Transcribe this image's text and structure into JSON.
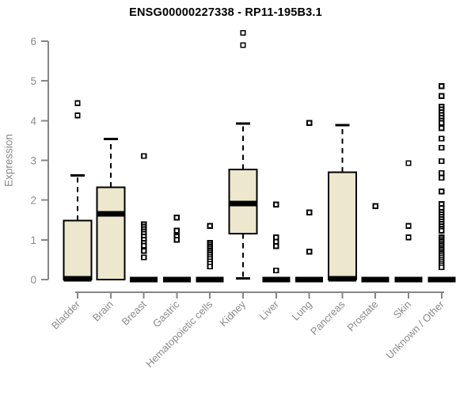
{
  "page": {
    "background": "#ffffff"
  },
  "chart_data": {
    "type": "boxplot",
    "title": "ENSG00000227338 - RP11-195B3.1",
    "xlabel": "",
    "ylabel": "Expression",
    "ylim": [
      0,
      6
    ],
    "yticks": [
      0,
      1,
      2,
      3,
      4,
      5,
      6
    ],
    "grid": false,
    "legend": "none",
    "categories": [
      "Bladder",
      "Brain",
      "Breast",
      "Gastric",
      "Hematopoietic cells",
      "Kidney",
      "Liver",
      "Lung",
      "Pancreas",
      "Prostate",
      "Skin",
      "Unknown / Other"
    ],
    "series": [
      {
        "category": "Bladder",
        "q1": 0,
        "median": 0.02,
        "q3": 1.49,
        "whisker_low": 0,
        "whisker_high": 2.62,
        "outliers": [
          4.44,
          4.13
        ]
      },
      {
        "category": "Brain",
        "q1": 0,
        "median": 1.65,
        "q3": 2.32,
        "whisker_low": 0,
        "whisker_high": 3.54,
        "outliers": []
      },
      {
        "category": "Breast",
        "q1": 0,
        "median": 0,
        "q3": 0,
        "whisker_low": 0,
        "whisker_high": 0,
        "outliers": [
          3.11,
          1.39,
          1.33,
          1.27,
          1.21,
          1.15,
          1.08,
          1.0,
          0.92,
          0.85,
          0.72,
          0.56
        ]
      },
      {
        "category": "Gastric",
        "q1": 0,
        "median": 0,
        "q3": 0,
        "whisker_low": 0,
        "whisker_high": 0,
        "outliers": [
          1.56,
          1.23,
          1.08,
          1.0
        ]
      },
      {
        "category": "Hematopoietic cells",
        "q1": 0,
        "median": 0,
        "q3": 0,
        "whisker_low": 0,
        "whisker_high": 0,
        "outliers": [
          1.35,
          0.92,
          0.87,
          0.82,
          0.77,
          0.72,
          0.67,
          0.62,
          0.57,
          0.52,
          0.46,
          0.4,
          0.33
        ]
      },
      {
        "category": "Kidney",
        "q1": 1.16,
        "median": 1.91,
        "q3": 2.77,
        "whisker_low": 0.03,
        "whisker_high": 3.93,
        "outliers": [
          6.21,
          5.9
        ]
      },
      {
        "category": "Liver",
        "q1": 0,
        "median": 0,
        "q3": 0,
        "whisker_low": 0,
        "whisker_high": 0,
        "outliers": [
          1.89,
          1.06,
          0.95,
          0.84,
          0.23
        ]
      },
      {
        "category": "Lung",
        "q1": 0,
        "median": 0,
        "q3": 0,
        "whisker_low": 0,
        "whisker_high": 0,
        "outliers": [
          3.94,
          1.69,
          0.7
        ]
      },
      {
        "category": "Pancreas",
        "q1": 0,
        "median": 0.02,
        "q3": 2.7,
        "whisker_low": 0,
        "whisker_high": 3.89,
        "outliers": []
      },
      {
        "category": "Prostate",
        "q1": 0,
        "median": 0,
        "q3": 0,
        "whisker_low": 0,
        "whisker_high": 0,
        "outliers": [
          1.85
        ]
      },
      {
        "category": "Skin",
        "q1": 0,
        "median": 0,
        "q3": 0,
        "whisker_low": 0,
        "whisker_high": 0,
        "outliers": [
          2.93,
          1.35,
          1.06
        ]
      },
      {
        "category": "Unknown / Other",
        "q1": 0,
        "median": 0,
        "q3": 0,
        "whisker_low": 0,
        "whisker_high": 0,
        "outliers": [
          4.87,
          4.62,
          4.35,
          4.28,
          4.21,
          4.14,
          4.07,
          4.0,
          3.94,
          3.81,
          3.55,
          3.32,
          2.98,
          2.68,
          2.56,
          2.22,
          1.9,
          1.8,
          1.7,
          1.64,
          1.58,
          1.52,
          1.46,
          1.4,
          1.34,
          1.28,
          1.23,
          1.06,
          1.01,
          0.96,
          0.91,
          0.86,
          0.81,
          0.76,
          0.71,
          0.66,
          0.61,
          0.56,
          0.51,
          0.46,
          0.41,
          0.36,
          0.31
        ]
      }
    ],
    "colors": {
      "box_fill": "#ece7cd",
      "box_stroke": "#000000",
      "median": "#000000",
      "whisker": "#000000",
      "outlier_stroke": "#000000",
      "outlier_fill": "#ffffff",
      "axis": "#868686",
      "tick_label": "#8a8a8a",
      "title": "#000000"
    }
  }
}
